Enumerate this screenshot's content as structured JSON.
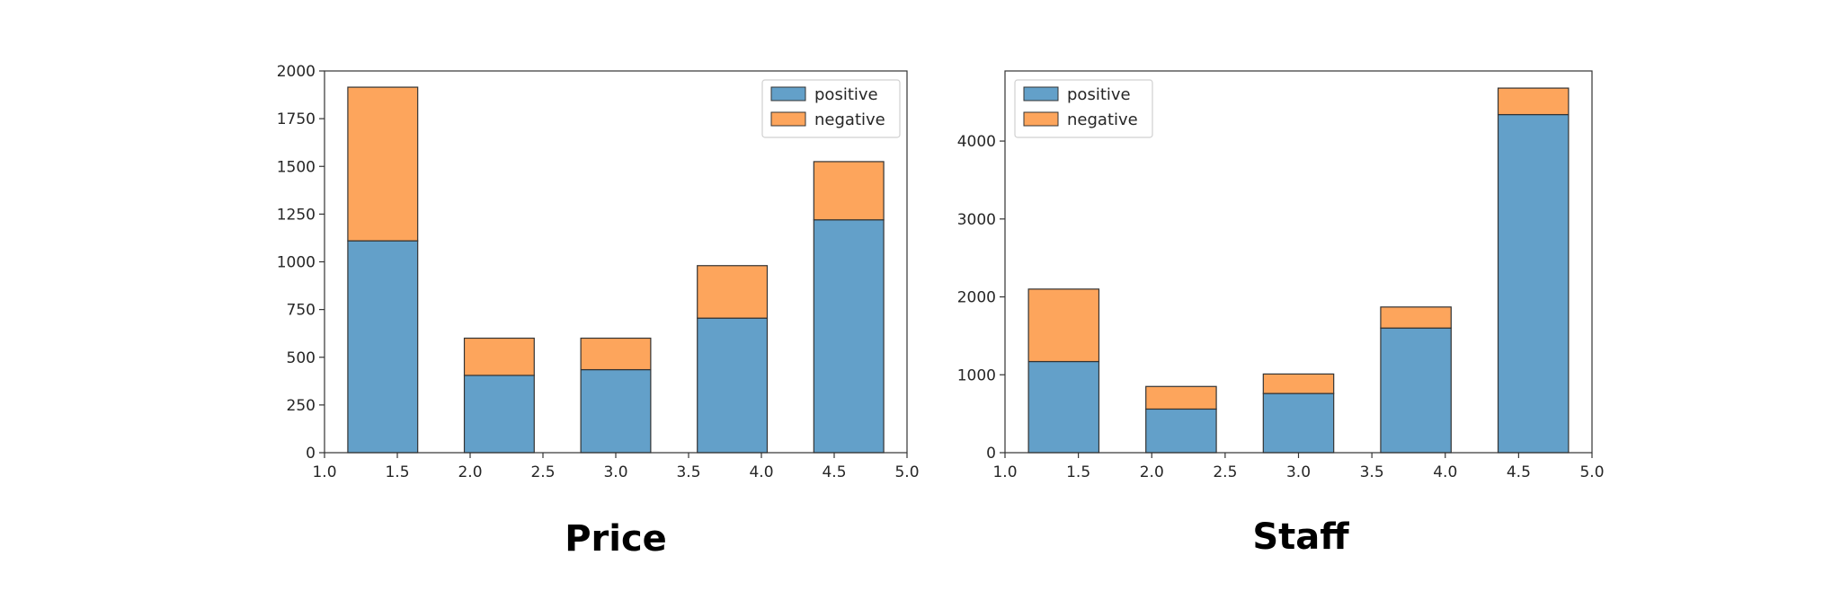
{
  "colors": {
    "positive": "#63A0C9",
    "negative": "#FDA55C",
    "edge": "#333333"
  },
  "chart_data": [
    {
      "type": "bar",
      "stacked": true,
      "title": "Price",
      "x": [
        1.4,
        2.2,
        3.0,
        3.8,
        4.6
      ],
      "bar_width": 0.48,
      "xlim": [
        1.0,
        5.0
      ],
      "xticks": [
        1.0,
        1.5,
        2.0,
        2.5,
        3.0,
        3.5,
        4.0,
        4.5,
        5.0
      ],
      "xtick_labels": [
        "1.0",
        "1.5",
        "2.0",
        "2.5",
        "3.0",
        "3.5",
        "4.0",
        "4.5",
        "5.0"
      ],
      "ylim": [
        0,
        2000
      ],
      "yticks": [
        0,
        250,
        500,
        750,
        1000,
        1250,
        1500,
        1750,
        2000
      ],
      "ytick_labels": [
        "0",
        "250",
        "500",
        "750",
        "1000",
        "1250",
        "1500",
        "1750",
        "2000"
      ],
      "series": [
        {
          "name": "positive",
          "values": [
            1110,
            405,
            435,
            705,
            1220
          ]
        },
        {
          "name": "negative",
          "values": [
            805,
            195,
            165,
            275,
            305
          ]
        }
      ],
      "legend": "top-right",
      "grid": false
    },
    {
      "type": "bar",
      "stacked": true,
      "title": "Staff",
      "x": [
        1.4,
        2.2,
        3.0,
        3.8,
        4.6
      ],
      "bar_width": 0.48,
      "xlim": [
        1.0,
        5.0
      ],
      "xticks": [
        1.0,
        1.5,
        2.0,
        2.5,
        3.0,
        3.5,
        4.0,
        4.5,
        5.0
      ],
      "xtick_labels": [
        "1.0",
        "1.5",
        "2.0",
        "2.5",
        "3.0",
        "3.5",
        "4.0",
        "4.5",
        "5.0"
      ],
      "ylim": [
        0,
        4900
      ],
      "yticks": [
        0,
        1000,
        2000,
        3000,
        4000
      ],
      "ytick_labels": [
        "0",
        "1000",
        "2000",
        "3000",
        "4000"
      ],
      "series": [
        {
          "name": "positive",
          "values": [
            1170,
            560,
            760,
            1600,
            4340
          ]
        },
        {
          "name": "negative",
          "values": [
            930,
            290,
            250,
            270,
            340
          ]
        }
      ],
      "legend": "top-left",
      "grid": false
    }
  ]
}
